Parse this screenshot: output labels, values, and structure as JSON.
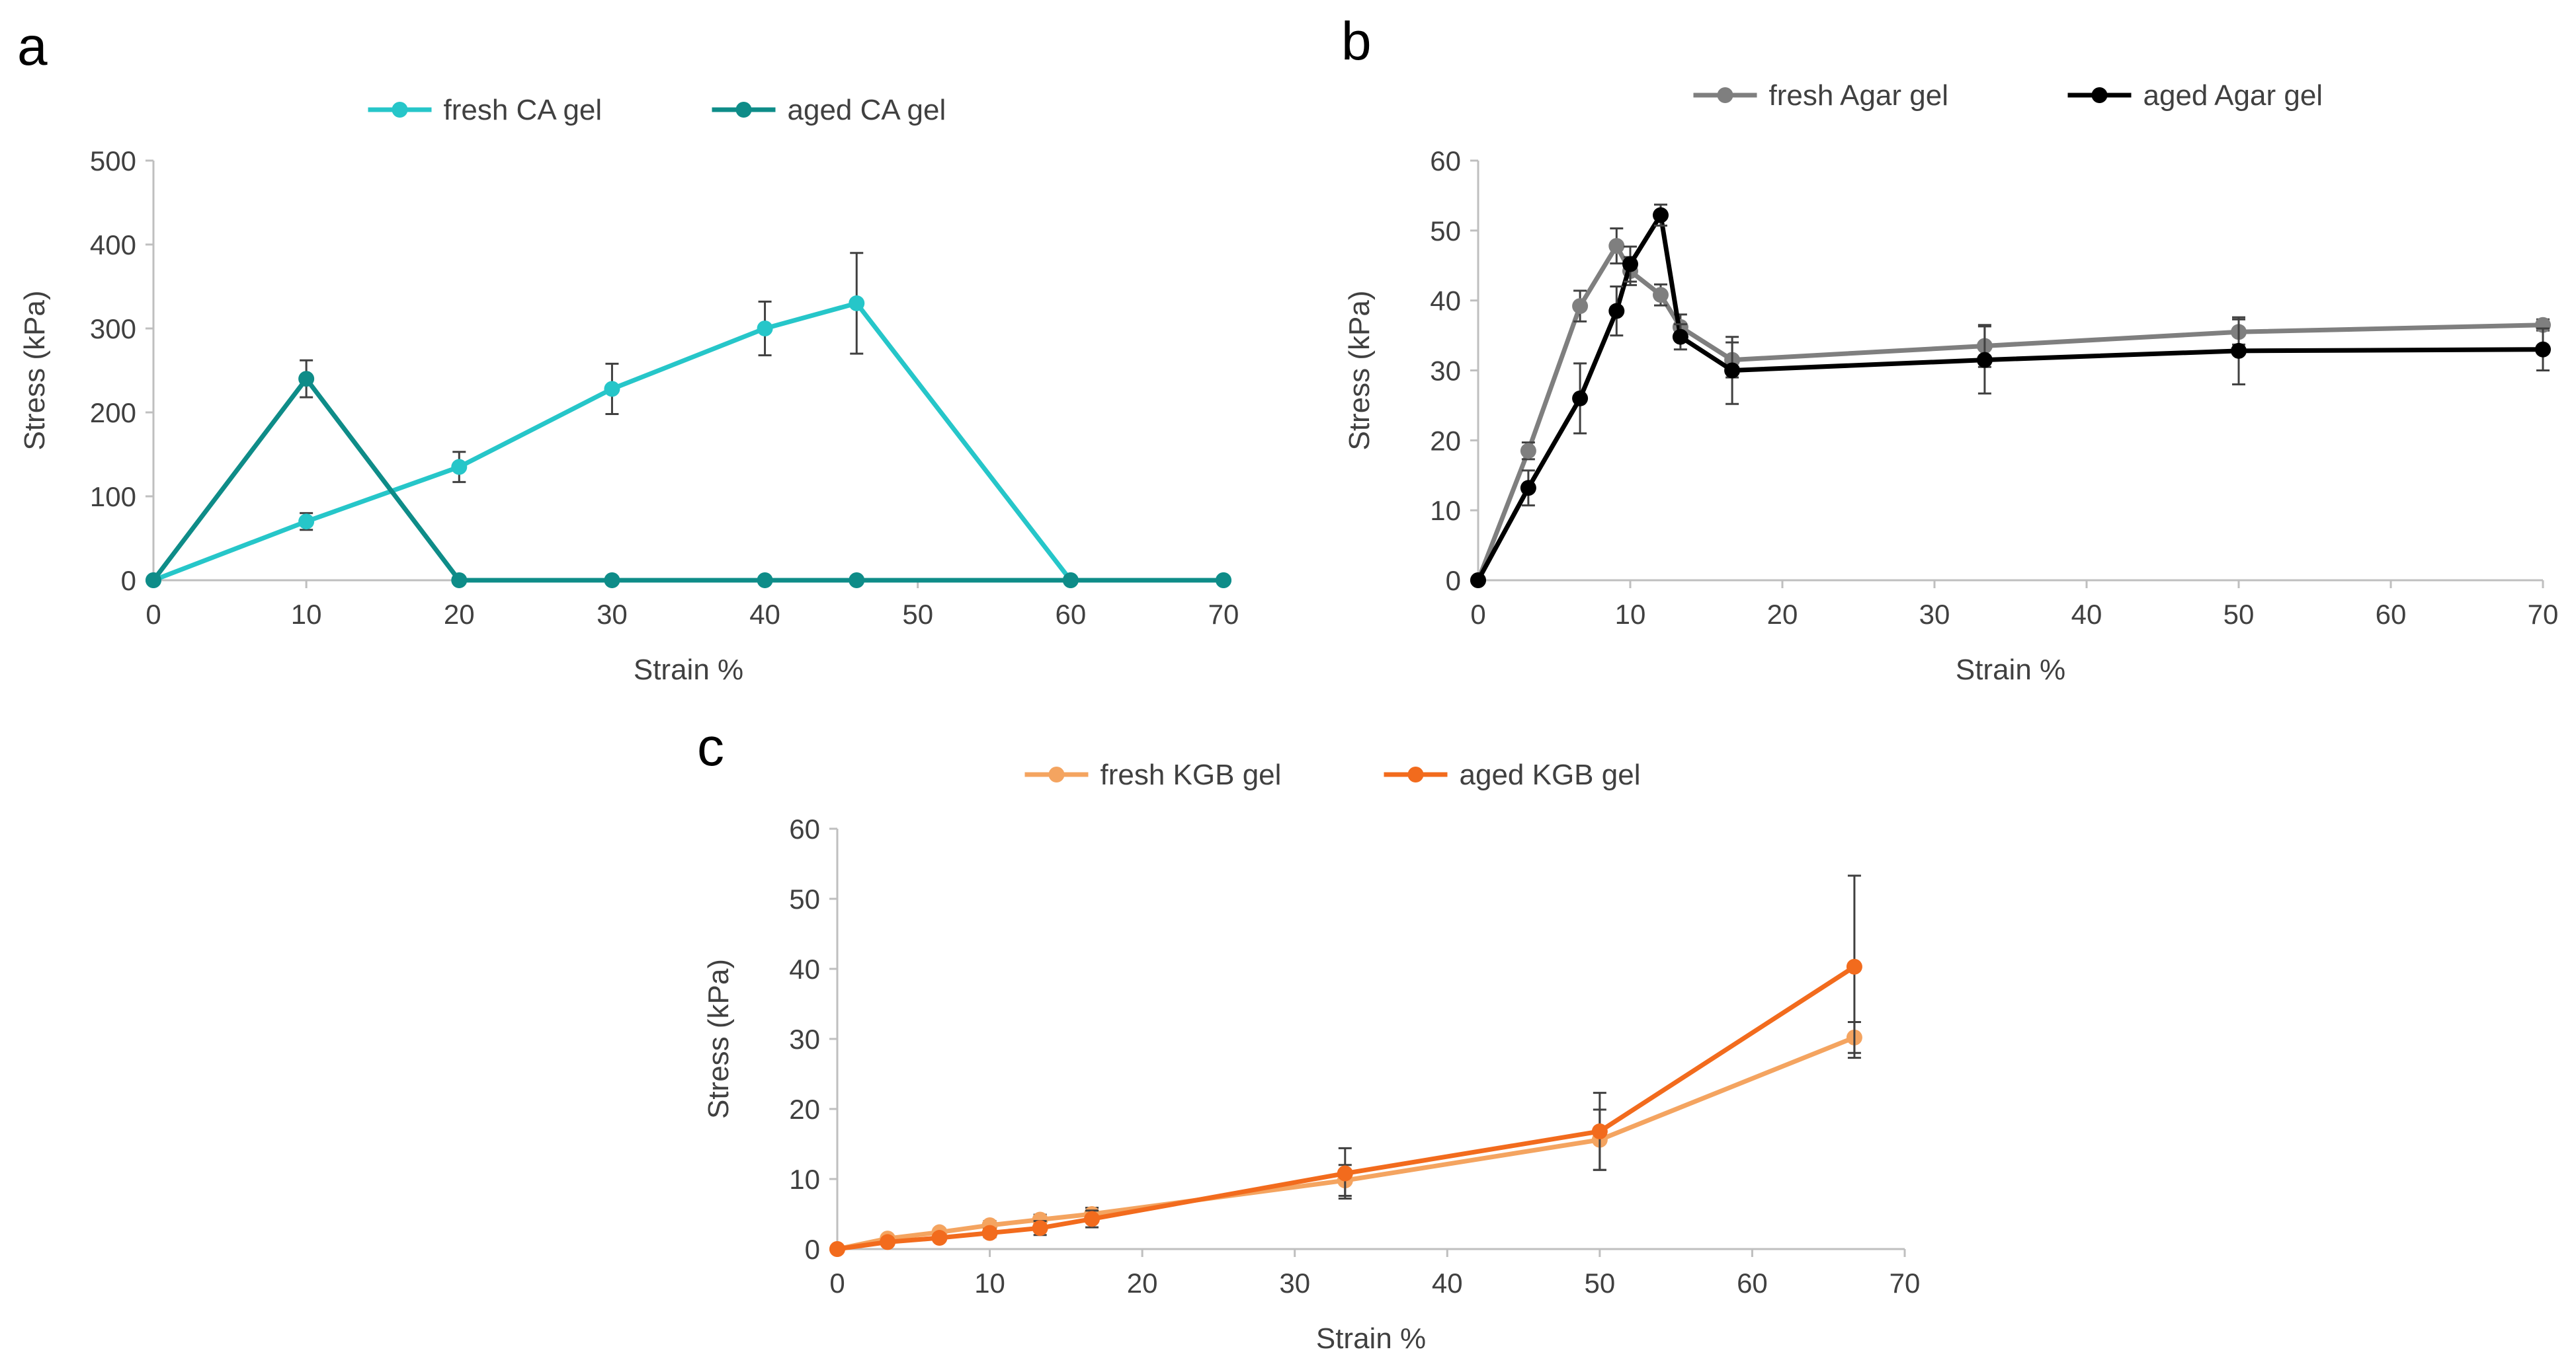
{
  "chart_data": [
    {
      "type": "line",
      "panel": "a",
      "title": "",
      "xlabel": "Strain %",
      "ylabel": "Stress (kPa)",
      "xlim": [
        0,
        70
      ],
      "ylim": [
        0,
        500
      ],
      "xticks": [
        0,
        10,
        20,
        30,
        40,
        50,
        60,
        70
      ],
      "yticks": [
        0,
        100,
        200,
        300,
        400,
        500
      ],
      "legend_position": "top-center",
      "series": [
        {
          "name": "fresh CA gel",
          "color": "#26C6C9",
          "marker": "circle",
          "x": [
            0,
            10,
            20,
            30,
            40,
            46,
            60,
            70
          ],
          "y": [
            0,
            70,
            135,
            228,
            300,
            330,
            0,
            0
          ],
          "err": [
            0,
            10,
            18,
            30,
            32,
            60,
            0,
            0
          ]
        },
        {
          "name": "aged CA gel",
          "color": "#0E8C88",
          "marker": "circle",
          "x": [
            0,
            10,
            20,
            30,
            40,
            46,
            60,
            70
          ],
          "y": [
            0,
            240,
            0,
            0,
            0,
            0,
            0,
            0
          ],
          "err": [
            0,
            22,
            0,
            0,
            0,
            0,
            0,
            0
          ]
        }
      ]
    },
    {
      "type": "line",
      "panel": "b",
      "title": "",
      "xlabel": "Strain %",
      "ylabel": "Stress (kPa)",
      "xlim": [
        0,
        70
      ],
      "ylim": [
        0,
        60
      ],
      "xticks": [
        0,
        10,
        20,
        30,
        40,
        50,
        60,
        70
      ],
      "yticks": [
        0,
        10,
        20,
        30,
        40,
        50,
        60
      ],
      "legend_position": "top-center",
      "series": [
        {
          "name": "fresh Agar gel",
          "color": "#7F7F7F",
          "marker": "circle",
          "x": [
            0,
            3.3,
            6.7,
            9.1,
            10,
            12,
            13.3,
            16.7,
            33.3,
            50,
            70
          ],
          "y": [
            0,
            18.5,
            39.2,
            47.8,
            44.2,
            40.8,
            36.2,
            31.5,
            33.5,
            35.5,
            36.5
          ],
          "err": [
            0,
            1.2,
            2.2,
            2.5,
            2.0,
            1.5,
            1.8,
            2.5,
            3.0,
            1.8,
            0.8
          ]
        },
        {
          "name": "aged Agar gel",
          "color": "#000000",
          "marker": "circle",
          "x": [
            0,
            3.3,
            6.7,
            9.1,
            10,
            12,
            13.3,
            16.7,
            33.3,
            50,
            70
          ],
          "y": [
            0,
            13.2,
            26.0,
            38.5,
            45.2,
            52.2,
            34.8,
            30.0,
            31.5,
            32.8,
            33.0
          ],
          "err": [
            0,
            2.5,
            5.0,
            3.5,
            2.5,
            1.5,
            1.8,
            4.8,
            4.8,
            4.8,
            3.0
          ]
        }
      ]
    },
    {
      "type": "line",
      "panel": "c",
      "title": "",
      "xlabel": "Strain %",
      "ylabel": "Stress (kPa)",
      "xlim": [
        0,
        70
      ],
      "ylim": [
        0,
        60
      ],
      "xticks": [
        0,
        10,
        20,
        30,
        40,
        50,
        60,
        70
      ],
      "yticks": [
        0,
        10,
        20,
        30,
        40,
        50,
        60
      ],
      "legend_position": "top-center",
      "series": [
        {
          "name": "fresh KGB gel",
          "color": "#F4A460",
          "marker": "circle",
          "x": [
            0,
            3.3,
            6.7,
            10,
            13.3,
            16.7,
            33.3,
            50,
            66.7
          ],
          "y": [
            0,
            1.5,
            2.4,
            3.4,
            4.2,
            5.0,
            9.8,
            15.6,
            30.2
          ],
          "err": [
            0,
            0.4,
            0.5,
            0.6,
            0.7,
            0.9,
            2.2,
            4.3,
            2.2
          ]
        },
        {
          "name": "aged KGB gel",
          "color": "#F26B1D",
          "marker": "circle",
          "x": [
            0,
            3.3,
            6.7,
            10,
            13.3,
            16.7,
            33.3,
            50,
            66.7
          ],
          "y": [
            0,
            1.0,
            1.6,
            2.3,
            3.0,
            4.3,
            10.8,
            16.8,
            40.3
          ],
          "err": [
            0,
            0.3,
            0.5,
            0.6,
            1.0,
            1.2,
            3.6,
            5.5,
            13.0
          ]
        }
      ]
    }
  ],
  "panel_labels": [
    "a",
    "b",
    "c"
  ],
  "colors": {
    "axis": "#BFBFBF",
    "tick_text": "#404040",
    "error_bar": "#404040"
  }
}
